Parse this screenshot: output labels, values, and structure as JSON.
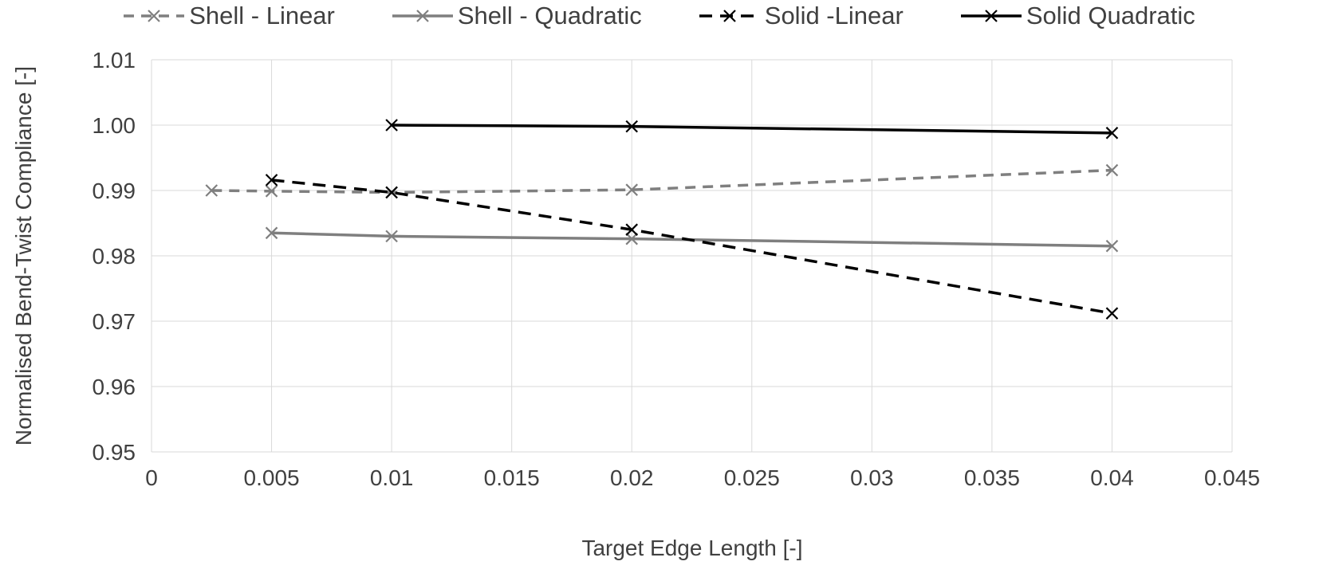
{
  "page": {
    "background": "#ffffff"
  },
  "chart_data": {
    "type": "line",
    "title": "",
    "xlabel": "Target Edge Length [-]",
    "ylabel": "Normalised Bend-Twist Compliance [-]",
    "xlim": [
      0,
      0.045
    ],
    "ylim": [
      0.95,
      1.01
    ],
    "xticks": [
      0,
      0.005,
      0.01,
      0.015,
      0.02,
      0.025,
      0.03,
      0.035,
      0.04,
      0.045
    ],
    "xtick_labels": [
      "0",
      "0.005",
      "0.01",
      "0.015",
      "0.02",
      "0.025",
      "0.03",
      "0.035",
      "0.04",
      "0.045"
    ],
    "yticks": [
      0.95,
      0.96,
      0.97,
      0.98,
      0.99,
      1.0,
      1.01
    ],
    "ytick_labels": [
      "0.95",
      "0.96",
      "0.97",
      "0.98",
      "0.99",
      "1.00",
      "1.01"
    ],
    "grid": true,
    "legend_position": "top",
    "colors": {
      "grid": "#d9d9d9",
      "axis_text": "#404040",
      "shell_series": "#7f7f7f",
      "solid_series": "#000000"
    },
    "series": [
      {
        "name": "Shell - Linear",
        "color": "#7f7f7f",
        "dash": "dashed",
        "marker": "x",
        "points": [
          [
            0.0025,
            0.99
          ],
          [
            0.005,
            0.9899
          ],
          [
            0.01,
            0.9897
          ],
          [
            0.02,
            0.9901
          ],
          [
            0.04,
            0.9931
          ]
        ]
      },
      {
        "name": "Shell - Quadratic",
        "color": "#7f7f7f",
        "dash": "solid",
        "marker": "x",
        "points": [
          [
            0.005,
            0.9835
          ],
          [
            0.01,
            0.983
          ],
          [
            0.02,
            0.9826
          ],
          [
            0.04,
            0.9815
          ]
        ]
      },
      {
        "name": "Solid -Linear",
        "color": "#000000",
        "dash": "dashed",
        "marker": "x",
        "points": [
          [
            0.005,
            0.9916
          ],
          [
            0.01,
            0.9897
          ],
          [
            0.02,
            0.984
          ],
          [
            0.04,
            0.9712
          ]
        ]
      },
      {
        "name": "Solid Quadratic",
        "color": "#000000",
        "dash": "solid",
        "marker": "x",
        "points": [
          [
            0.01,
            1.0
          ],
          [
            0.02,
            0.9998
          ],
          [
            0.04,
            0.9988
          ]
        ]
      }
    ]
  }
}
